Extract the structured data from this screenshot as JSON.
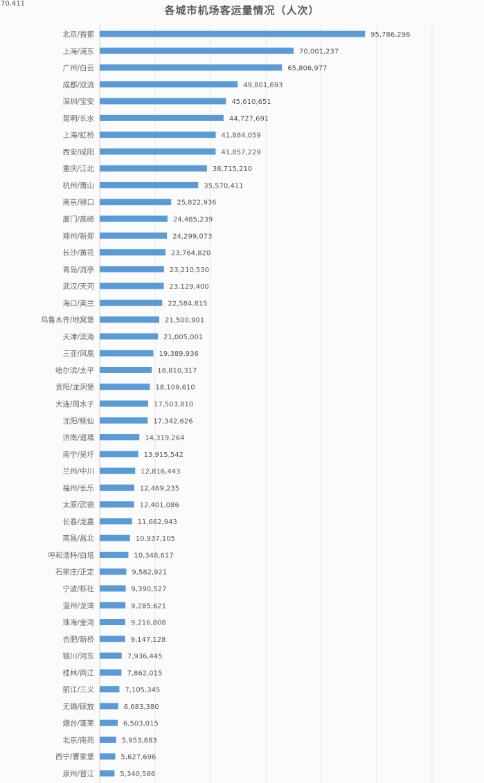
{
  "corner_fragment": "70,411",
  "chart_data": {
    "type": "bar",
    "orientation": "horizontal",
    "title": "各城市机场客运量情况（人次）",
    "xlabel": "",
    "ylabel": "",
    "xlim": [
      0,
      120000000
    ],
    "grid_step": 20000000,
    "grid": true,
    "bar_color": "#5b9bd5",
    "categories": [
      "北京/首都",
      "上海/浦东",
      "广州/白云",
      "成都/双流",
      "深圳/宝安",
      "昆明/长水",
      "上海/虹桥",
      "西安/咸阳",
      "重庆/江北",
      "杭州/萧山",
      "南京/禄口",
      "厦门/高崎",
      "郑州/新郑",
      "长沙/黄花",
      "青岛/流亭",
      "武汉/天河",
      "海口/美兰",
      "乌鲁木齐/地窝堡",
      "天津/滨海",
      "三亚/凤凰",
      "哈尔滨/太平",
      "贵阳/龙洞堡",
      "大连/周水子",
      "沈阳/桃仙",
      "济南/遥墙",
      "南宁/吴圩",
      "兰州/中川",
      "福州/长乐",
      "太原/武宿",
      "长春/龙嘉",
      "南昌/昌北",
      "呼和浩特/白塔",
      "石家庄/正定",
      "宁波/栎社",
      "温州/龙湾",
      "珠海/金湾",
      "合肥/新桥",
      "银川/河东",
      "桂林/两江",
      "丽江/三义",
      "无锡/硕放",
      "烟台/蓬莱",
      "北京/南苑",
      "西宁/曹家堡",
      "泉州/晋江"
    ],
    "values": [
      95786296,
      70001237,
      65806977,
      49801693,
      45610651,
      44727691,
      41884059,
      41857229,
      38715210,
      35570411,
      25822936,
      24485239,
      24299073,
      23764820,
      23210530,
      23129400,
      22584815,
      21500901,
      21005001,
      19389936,
      18810317,
      18109610,
      17503810,
      17342626,
      14319264,
      13915542,
      12816443,
      12469235,
      12401086,
      11662943,
      10937105,
      10348617,
      9582921,
      9390527,
      9285621,
      9216808,
      9147128,
      7936445,
      7862015,
      7105345,
      6683380,
      6503015,
      5953883,
      5627696,
      5340586
    ],
    "value_labels": [
      "95,786,296",
      "70,001,237",
      "65,806,977",
      "49,801,693",
      "45,610,651",
      "44,727,691",
      "41,884,059",
      "41,857,229",
      "38,715,210",
      "35,570,411",
      "25,822,936",
      "24,485,239",
      "24,299,073",
      "23,764,820",
      "23,210,530",
      "23,129,400",
      "22,584,815",
      "21,500,901",
      "21,005,001",
      "19,389,936",
      "18,810,317",
      "18,109,610",
      "17,503,810",
      "17,342,626",
      "14,319,264",
      "13,915,542",
      "12,816,443",
      "12,469,235",
      "12,401,086",
      "11,662,943",
      "10,937,105",
      "10,348,617",
      "9,582,921",
      "9,390,527",
      "9,285,621",
      "9,216,808",
      "9,147,128",
      "7,936,445",
      "7,862,015",
      "7,105,345",
      "6,683,380",
      "6,503,015",
      "5,953,883",
      "5,627,696",
      "5,340,586"
    ]
  }
}
